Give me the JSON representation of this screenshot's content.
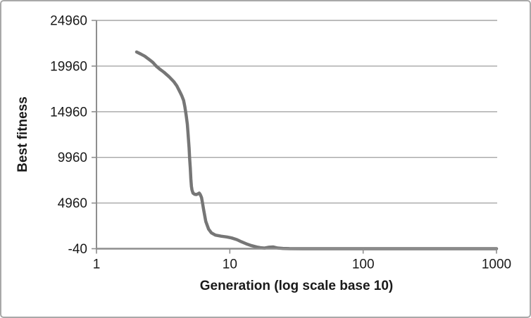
{
  "window": {
    "background": "#ffffff",
    "border_color": "#a9a9a9"
  },
  "chart_data": {
    "type": "line",
    "title": "",
    "xlabel": "Generation (log scale base 10)",
    "ylabel": "Best fitness",
    "x_scale": "log10",
    "xlim": [
      1,
      1000
    ],
    "ylim": [
      -40,
      24960
    ],
    "x_ticks": [
      1,
      10,
      100,
      1000
    ],
    "y_ticks": [
      24960,
      19960,
      14960,
      9960,
      4960,
      -40
    ],
    "grid": "horizontal",
    "legend": "none",
    "colors": {
      "line": "#767676",
      "grid": "#a6a6a6",
      "axis": "#8e8e8e",
      "text": "#1a1a1a"
    },
    "series": [
      {
        "name": "Best fitness",
        "color": "#767676",
        "points": [
          [
            2.0,
            21500
          ],
          [
            2.15,
            21280
          ],
          [
            2.3,
            21050
          ],
          [
            2.5,
            20650
          ],
          [
            2.65,
            20350
          ],
          [
            2.8,
            19960
          ],
          [
            3.0,
            19600
          ],
          [
            3.2,
            19300
          ],
          [
            3.5,
            18800
          ],
          [
            3.8,
            18250
          ],
          [
            4.0,
            17800
          ],
          [
            4.2,
            17200
          ],
          [
            4.35,
            16750
          ],
          [
            4.5,
            16200
          ],
          [
            4.6,
            15500
          ],
          [
            4.7,
            14600
          ],
          [
            4.8,
            13600
          ],
          [
            4.85,
            12800
          ],
          [
            4.95,
            11000
          ],
          [
            5.0,
            9800
          ],
          [
            5.05,
            8800
          ],
          [
            5.1,
            7600
          ],
          [
            5.15,
            6800
          ],
          [
            5.2,
            6400
          ],
          [
            5.3,
            6050
          ],
          [
            5.45,
            5920
          ],
          [
            5.6,
            5890
          ],
          [
            5.75,
            5950
          ],
          [
            5.9,
            6050
          ],
          [
            6.0,
            5900
          ],
          [
            6.14,
            5550
          ],
          [
            6.25,
            4900
          ],
          [
            6.36,
            4250
          ],
          [
            6.6,
            2950
          ],
          [
            6.93,
            2100
          ],
          [
            7.27,
            1700
          ],
          [
            7.8,
            1450
          ],
          [
            8.6,
            1330
          ],
          [
            9.5,
            1250
          ],
          [
            10.3,
            1140
          ],
          [
            11.3,
            950
          ],
          [
            12.2,
            720
          ],
          [
            13.3,
            490
          ],
          [
            14.5,
            300
          ],
          [
            15.9,
            145
          ],
          [
            17.0,
            70
          ],
          [
            18.2,
            30
          ],
          [
            19.7,
            120
          ],
          [
            21.2,
            150
          ],
          [
            22.8,
            35
          ],
          [
            25,
            -10
          ],
          [
            28,
            -30
          ],
          [
            35,
            -38
          ],
          [
            50,
            -40
          ],
          [
            100,
            -40
          ],
          [
            200,
            -40
          ],
          [
            500,
            -40
          ],
          [
            1000,
            -40
          ]
        ]
      }
    ]
  }
}
